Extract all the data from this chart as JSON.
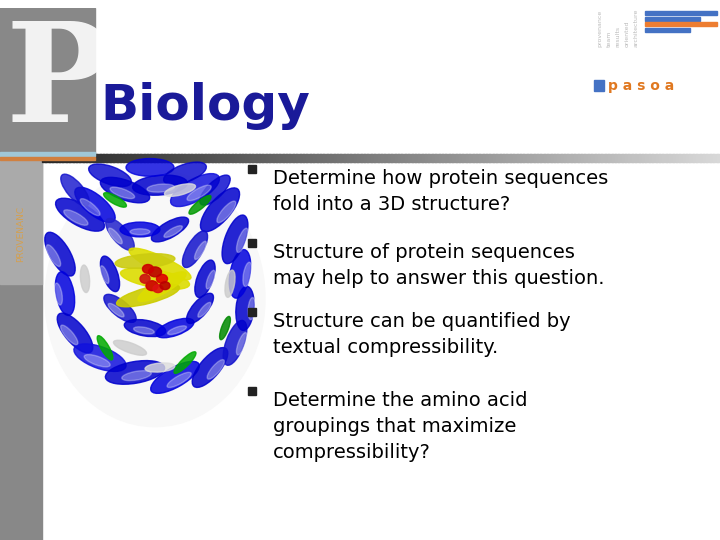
{
  "title": "Biology",
  "title_color": "#1a1a99",
  "title_fontsize": 36,
  "background_color": "#ffffff",
  "bullet_points": [
    "Determine how protein sequences\nfold into a 3D structure?",
    "Structure of protein sequences\nmay help to answer this question.",
    "Structure can be quantified by\ntextual compressibility.",
    "Determine the amino acid\ngroupings that maximize\ncompressibility?"
  ],
  "bullet_color": "#000000",
  "bullet_fontsize": 14,
  "pasoa_text": "p a s o a",
  "pasoa_square_color": "#4472c4",
  "pasoa_text_color": "#e07820",
  "stripe_colors": [
    "#4472c4",
    "#4472c4",
    "#ed7d31",
    "#4472c4"
  ],
  "sidebar_dark": "#666666",
  "sidebar_light": "#999999",
  "provenance_color": "#d4a050",
  "header_line_dark": "#444444",
  "header_line_light": "#cccccc",
  "small_labels": [
    "provenance",
    "team",
    "results",
    "oriented",
    "architecture"
  ]
}
